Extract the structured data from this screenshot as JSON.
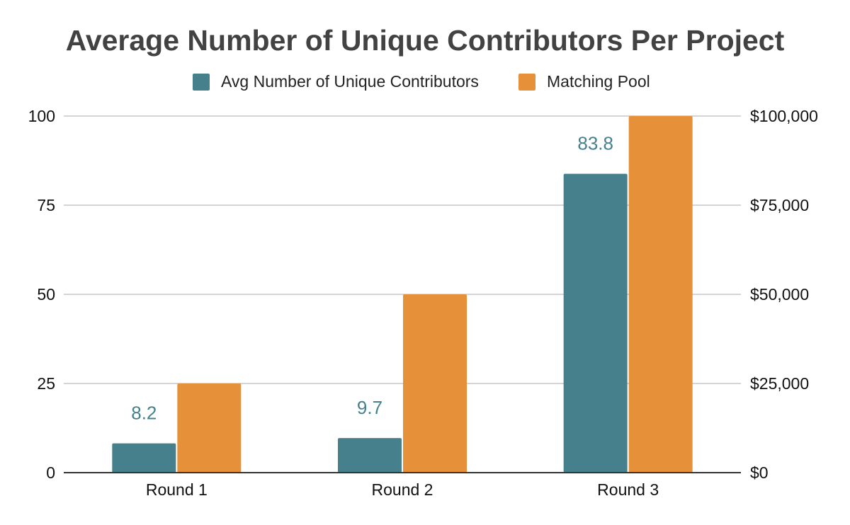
{
  "chart_data": {
    "type": "bar",
    "title": "Average Number of Unique Contributors Per Project",
    "categories": [
      "Round 1",
      "Round 2",
      "Round 3"
    ],
    "series": [
      {
        "name": "Avg Number of Unique Contributors",
        "axis": "left",
        "color": "#47808d",
        "values": [
          8.2,
          9.7,
          83.8
        ],
        "data_labels": [
          "8.2",
          "9.7",
          "83.8"
        ]
      },
      {
        "name": "Matching Pool",
        "axis": "right",
        "color": "#e6913a",
        "values": [
          25000,
          50000,
          100000
        ]
      }
    ],
    "y_left": {
      "ylim": [
        0,
        100
      ],
      "ticks": [
        0,
        25,
        50,
        75,
        100
      ],
      "tick_labels": [
        "0",
        "25",
        "50",
        "75",
        "100"
      ]
    },
    "y_right": {
      "ylim": [
        0,
        100000
      ],
      "ticks": [
        0,
        25000,
        50000,
        75000,
        100000
      ],
      "tick_labels": [
        "$0",
        "$25,000",
        "$50,000",
        "$75,000",
        "$100,000"
      ]
    },
    "legend_position": "top",
    "grid": true
  }
}
